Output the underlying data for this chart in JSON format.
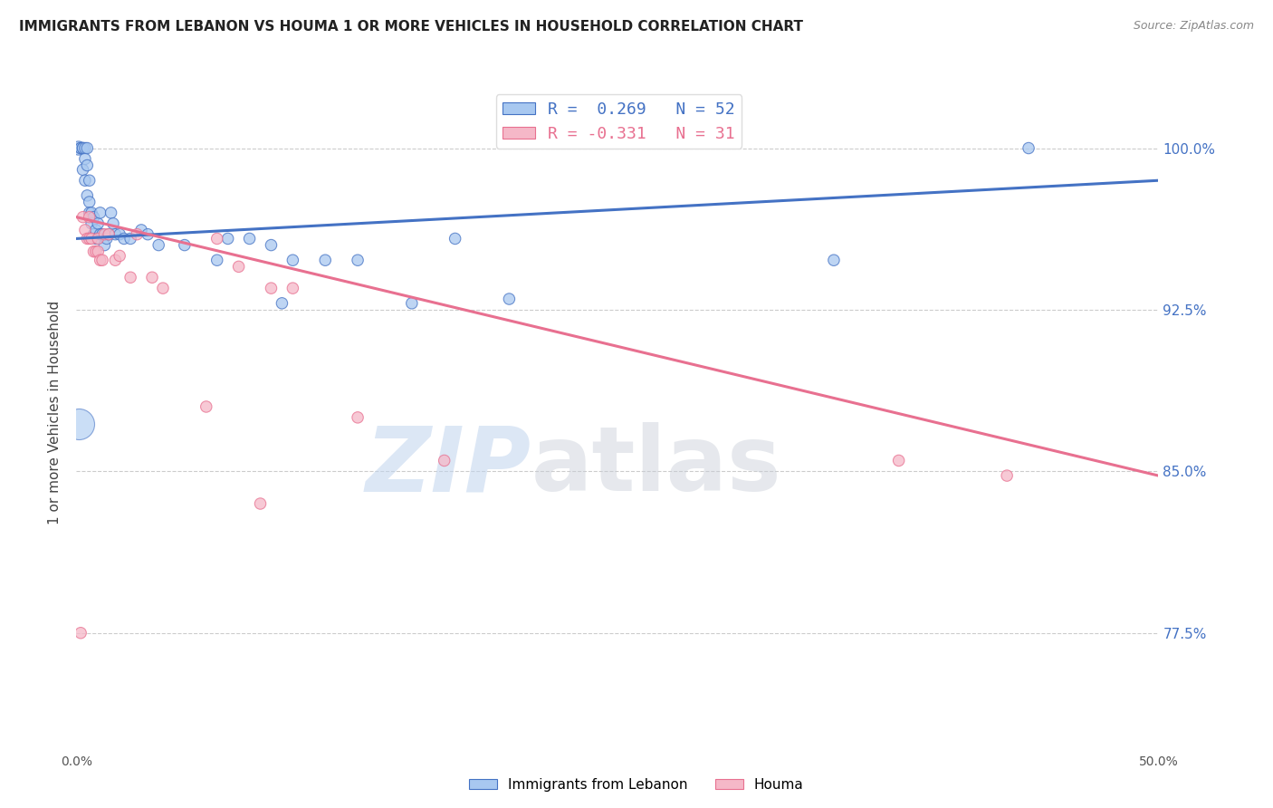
{
  "title": "IMMIGRANTS FROM LEBANON VS HOUMA 1 OR MORE VEHICLES IN HOUSEHOLD CORRELATION CHART",
  "source": "Source: ZipAtlas.com",
  "ylabel": "1 or more Vehicles in Household",
  "ytick_labels": [
    "100.0%",
    "92.5%",
    "85.0%",
    "77.5%"
  ],
  "ytick_values": [
    1.0,
    0.925,
    0.85,
    0.775
  ],
  "xmin": 0.0,
  "xmax": 0.5,
  "ymin": 0.72,
  "ymax": 1.035,
  "legend_R_blue": "R =  0.269",
  "legend_N_blue": "N = 52",
  "legend_R_pink": "R = -0.331",
  "legend_N_pink": "N = 31",
  "blue_color": "#A8C8F0",
  "pink_color": "#F5B8C8",
  "blue_line_color": "#4472C4",
  "pink_line_color": "#E87090",
  "watermark_zip": "ZIP",
  "watermark_atlas": "atlas",
  "blue_scatter_x": [
    0.001,
    0.002,
    0.002,
    0.003,
    0.003,
    0.003,
    0.004,
    0.004,
    0.004,
    0.005,
    0.005,
    0.005,
    0.006,
    0.006,
    0.006,
    0.007,
    0.007,
    0.008,
    0.008,
    0.009,
    0.009,
    0.01,
    0.01,
    0.011,
    0.011,
    0.012,
    0.013,
    0.014,
    0.015,
    0.016,
    0.017,
    0.018,
    0.02,
    0.022,
    0.025,
    0.03,
    0.033,
    0.038,
    0.05,
    0.065,
    0.07,
    0.08,
    0.09,
    0.095,
    0.1,
    0.115,
    0.13,
    0.155,
    0.175,
    0.2,
    0.35,
    0.44
  ],
  "blue_scatter_y": [
    1.0,
    1.0,
    1.0,
    1.0,
    1.0,
    0.99,
    1.0,
    0.995,
    0.985,
    1.0,
    0.992,
    0.978,
    0.985,
    0.975,
    0.97,
    0.97,
    0.965,
    0.968,
    0.96,
    0.962,
    0.958,
    0.965,
    0.958,
    0.97,
    0.96,
    0.96,
    0.955,
    0.958,
    0.96,
    0.97,
    0.965,
    0.96,
    0.96,
    0.958,
    0.958,
    0.962,
    0.96,
    0.955,
    0.955,
    0.948,
    0.958,
    0.958,
    0.955,
    0.928,
    0.948,
    0.948,
    0.948,
    0.928,
    0.958,
    0.93,
    0.948,
    1.0
  ],
  "blue_scatter_size": [
    120,
    80,
    80,
    80,
    80,
    80,
    80,
    80,
    80,
    80,
    80,
    80,
    80,
    80,
    80,
    80,
    80,
    80,
    80,
    80,
    80,
    80,
    80,
    80,
    80,
    80,
    80,
    80,
    80,
    80,
    80,
    80,
    80,
    80,
    80,
    80,
    80,
    80,
    80,
    80,
    80,
    80,
    80,
    80,
    80,
    80,
    80,
    80,
    80,
    80,
    80,
    80
  ],
  "blue_large_x": [
    0.001
  ],
  "blue_large_y": [
    0.872
  ],
  "blue_large_size": [
    600
  ],
  "pink_scatter_x": [
    0.002,
    0.003,
    0.004,
    0.005,
    0.006,
    0.006,
    0.007,
    0.008,
    0.009,
    0.01,
    0.01,
    0.011,
    0.012,
    0.013,
    0.015,
    0.018,
    0.02,
    0.025,
    0.028,
    0.035,
    0.04,
    0.06,
    0.065,
    0.075,
    0.085,
    0.09,
    0.1,
    0.13,
    0.17,
    0.38,
    0.43
  ],
  "pink_scatter_y": [
    0.775,
    0.968,
    0.962,
    0.958,
    0.958,
    0.968,
    0.958,
    0.952,
    0.952,
    0.952,
    0.958,
    0.948,
    0.948,
    0.96,
    0.96,
    0.948,
    0.95,
    0.94,
    0.96,
    0.94,
    0.935,
    0.88,
    0.958,
    0.945,
    0.835,
    0.935,
    0.935,
    0.875,
    0.855,
    0.855,
    0.848
  ],
  "pink_scatter_size": [
    80,
    80,
    80,
    80,
    80,
    80,
    80,
    80,
    80,
    80,
    80,
    80,
    80,
    80,
    80,
    80,
    80,
    80,
    80,
    80,
    80,
    80,
    80,
    80,
    80,
    80,
    80,
    80,
    80,
    80,
    80
  ],
  "blue_trend_x": [
    0.0,
    0.5
  ],
  "blue_trend_y": [
    0.958,
    0.985
  ],
  "pink_trend_x": [
    0.0,
    0.5
  ],
  "pink_trend_y": [
    0.968,
    0.848
  ]
}
